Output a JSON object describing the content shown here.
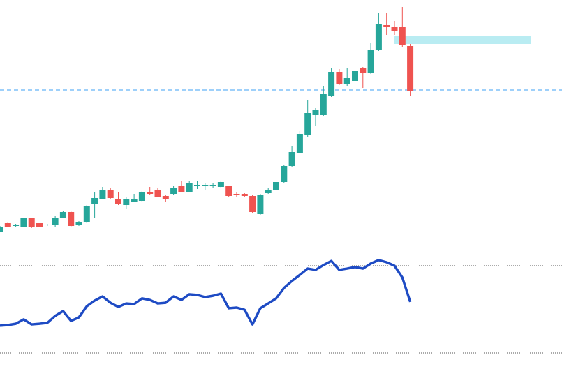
{
  "chart_data": [
    {
      "type": "candlestick",
      "open": [
        6,
        18,
        14,
        13,
        25,
        18,
        15,
        15,
        26,
        34,
        15,
        20,
        45,
        53,
        66,
        53,
        44,
        49,
        50,
        63,
        65,
        57,
        60,
        71,
        63,
        72,
        71,
        71,
        70,
        71,
        60,
        60,
        57,
        31,
        61,
        65,
        77,
        100,
        119,
        145,
        173,
        173,
        200,
        235,
        217,
        222,
        240,
        234,
        266,
        302,
        300,
        300,
        272
      ],
      "high": [
        14,
        19,
        17,
        26,
        26,
        18,
        17,
        28,
        36,
        36,
        21,
        44,
        62,
        70,
        68,
        62,
        55,
        60,
        64,
        70,
        68,
        59,
        72,
        78,
        78,
        79,
        76,
        76,
        78,
        72,
        62,
        61,
        59,
        60,
        68,
        81,
        102,
        128,
        150,
        194,
        183,
        214,
        241,
        239,
        240,
        240,
        242,
        276,
        320,
        320,
        308,
        328,
        275
      ],
      "low": [
        5,
        12,
        13,
        12,
        11,
        13,
        14,
        13,
        25,
        12,
        14,
        18,
        26,
        52,
        53,
        44,
        38,
        48,
        49,
        59,
        55,
        49,
        59,
        62,
        62,
        67,
        66,
        69,
        69,
        56,
        56,
        56,
        32,
        30,
        60,
        57,
        76,
        99,
        118,
        142,
        158,
        172,
        199,
        216,
        214,
        221,
        212,
        232,
        265,
        288,
        288,
        271,
        201
      ],
      "close": [
        13,
        13,
        16,
        25,
        12,
        13,
        16,
        26,
        34,
        14,
        20,
        42,
        54,
        66,
        54,
        45,
        53,
        52,
        63,
        60,
        56,
        53,
        69,
        63,
        75,
        73,
        73,
        73,
        77,
        57,
        58,
        57,
        34,
        58,
        66,
        77,
        100,
        120,
        146,
        176,
        180,
        203,
        235,
        218,
        226,
        236,
        233,
        266,
        304,
        300,
        293,
        273,
        208
      ],
      "ylim": [
        0,
        338
      ],
      "up_color": "#26a69a",
      "down_color": "#ef5350",
      "price_line": 209,
      "price_line_color": "#64b5f6",
      "zone": [
        275,
        287
      ],
      "zone_color": "#b9ecf2"
    },
    {
      "type": "line",
      "values": [
        42.5,
        42.8,
        43.4,
        45.4,
        43.1,
        43.4,
        43.8,
        47.0,
        49.2,
        44.7,
        46.3,
        51.4,
        54.0,
        55.9,
        53.0,
        51.1,
        52.7,
        52.4,
        55.0,
        54.3,
        52.7,
        53.0,
        55.9,
        54.3,
        56.9,
        56.6,
        55.6,
        56.2,
        57.2,
        50.5,
        50.8,
        49.8,
        43.1,
        50.5,
        52.7,
        55.0,
        59.8,
        63.0,
        65.8,
        68.7,
        68.1,
        70.3,
        72.2,
        68.1,
        68.7,
        69.4,
        68.7,
        71.0,
        72.6,
        71.6,
        70.0,
        64.6,
        53.4
      ],
      "ylim": [
        18.48,
        83.76
      ],
      "levels": [
        70,
        30
      ],
      "color": "#1e4bc4"
    }
  ]
}
